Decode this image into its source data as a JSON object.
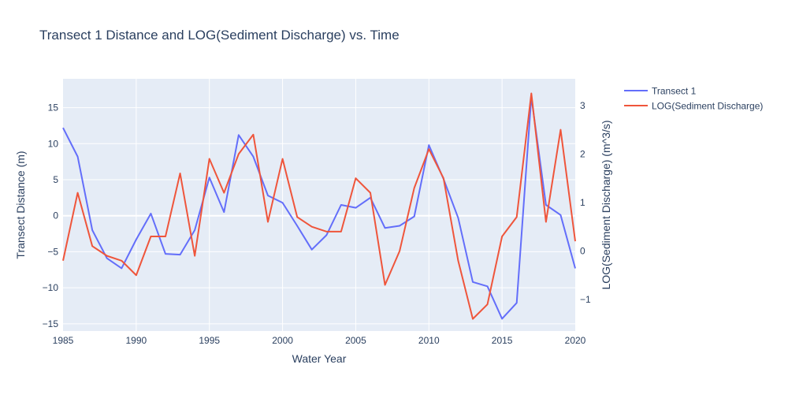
{
  "chart_data": {
    "type": "line",
    "title": "Transect 1 Distance and LOG(Sediment Discharge) vs. Time",
    "xlabel": "Water Year",
    "ylabel_left": "Transect Distance (m)",
    "ylabel_right": "LOG(Sediment Discharge) (m^3/s)",
    "xlim": [
      1985,
      2020
    ],
    "ylim_left": [
      -16,
      19
    ],
    "ylim_right": [
      -1.65,
      3.55
    ],
    "x_ticks": [
      1985,
      1990,
      1995,
      2000,
      2005,
      2010,
      2015,
      2020
    ],
    "y_left_ticks": [
      15,
      10,
      5,
      0,
      -5,
      -10,
      -15
    ],
    "y_right_ticks": [
      3,
      2,
      1,
      0,
      -1
    ],
    "y_left_tick_labels": [
      "15",
      "10",
      "5",
      "0",
      "−5",
      "−10",
      "−15"
    ],
    "y_right_tick_labels": [
      "3",
      "2",
      "1",
      "0",
      "−1"
    ],
    "grid": true,
    "legend_position": "top-right outside",
    "x": [
      1985,
      1986,
      1987,
      1988,
      1989,
      1990,
      1991,
      1992,
      1993,
      1994,
      1995,
      1996,
      1997,
      1998,
      1999,
      2000,
      2001,
      2002,
      2003,
      2004,
      2005,
      2006,
      2007,
      2008,
      2009,
      2010,
      2011,
      2012,
      2013,
      2014,
      2015,
      2016,
      2017,
      2018,
      2019,
      2020
    ],
    "series": [
      {
        "name": "Transect 1",
        "axis": "left",
        "color": "#636efa",
        "values": [
          12.2,
          8.2,
          -2.0,
          -5.9,
          -7.3,
          -3.3,
          0.3,
          -5.3,
          -5.4,
          -2.0,
          5.3,
          0.5,
          11.2,
          8.2,
          2.8,
          1.8,
          -1.4,
          -4.7,
          -2.7,
          1.5,
          1.1,
          2.5,
          -1.7,
          -1.4,
          -0.1,
          9.8,
          5.1,
          -0.3,
          -9.2,
          -9.8,
          -14.3,
          -12.1,
          16.5,
          1.5,
          0.1,
          -7.3
        ]
      },
      {
        "name": "LOG(Sediment Discharge)",
        "axis": "right",
        "color": "#ef553b",
        "values": [
          -0.2,
          1.2,
          0.1,
          -0.1,
          -0.2,
          -0.5,
          0.3,
          0.3,
          1.6,
          -0.1,
          1.9,
          1.2,
          2.0,
          2.4,
          0.6,
          1.9,
          0.7,
          0.5,
          0.4,
          0.4,
          1.5,
          1.2,
          -0.7,
          0.0,
          1.3,
          2.1,
          1.5,
          -0.2,
          -1.4,
          -1.1,
          0.3,
          0.7,
          3.25,
          0.6,
          2.5,
          0.2
        ]
      }
    ]
  }
}
